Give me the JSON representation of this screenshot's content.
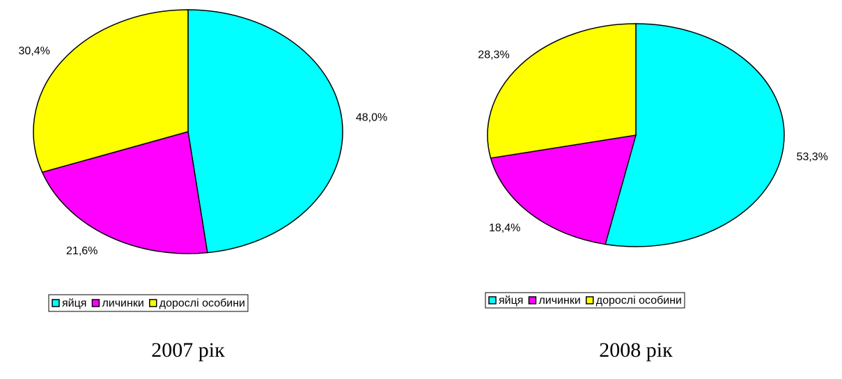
{
  "chart_data": [
    {
      "type": "pie",
      "title": "2007 рік",
      "categories": [
        "яйця",
        "личинки",
        "дорослі особини"
      ],
      "values": [
        48.0,
        21.6,
        30.4
      ],
      "value_labels": [
        "48,0%",
        "21,6%",
        "30,4%"
      ],
      "colors": [
        "#00ffff",
        "#ff00ff",
        "#ffff00"
      ]
    },
    {
      "type": "pie",
      "title": "2008 рік",
      "categories": [
        "яйця",
        "личинки",
        "дорослі особини"
      ],
      "values": [
        53.3,
        18.4,
        28.3
      ],
      "value_labels": [
        "53,3%",
        "18,4%",
        "28,3%"
      ],
      "colors": [
        "#00ffff",
        "#ff00ff",
        "#ffff00"
      ]
    }
  ]
}
